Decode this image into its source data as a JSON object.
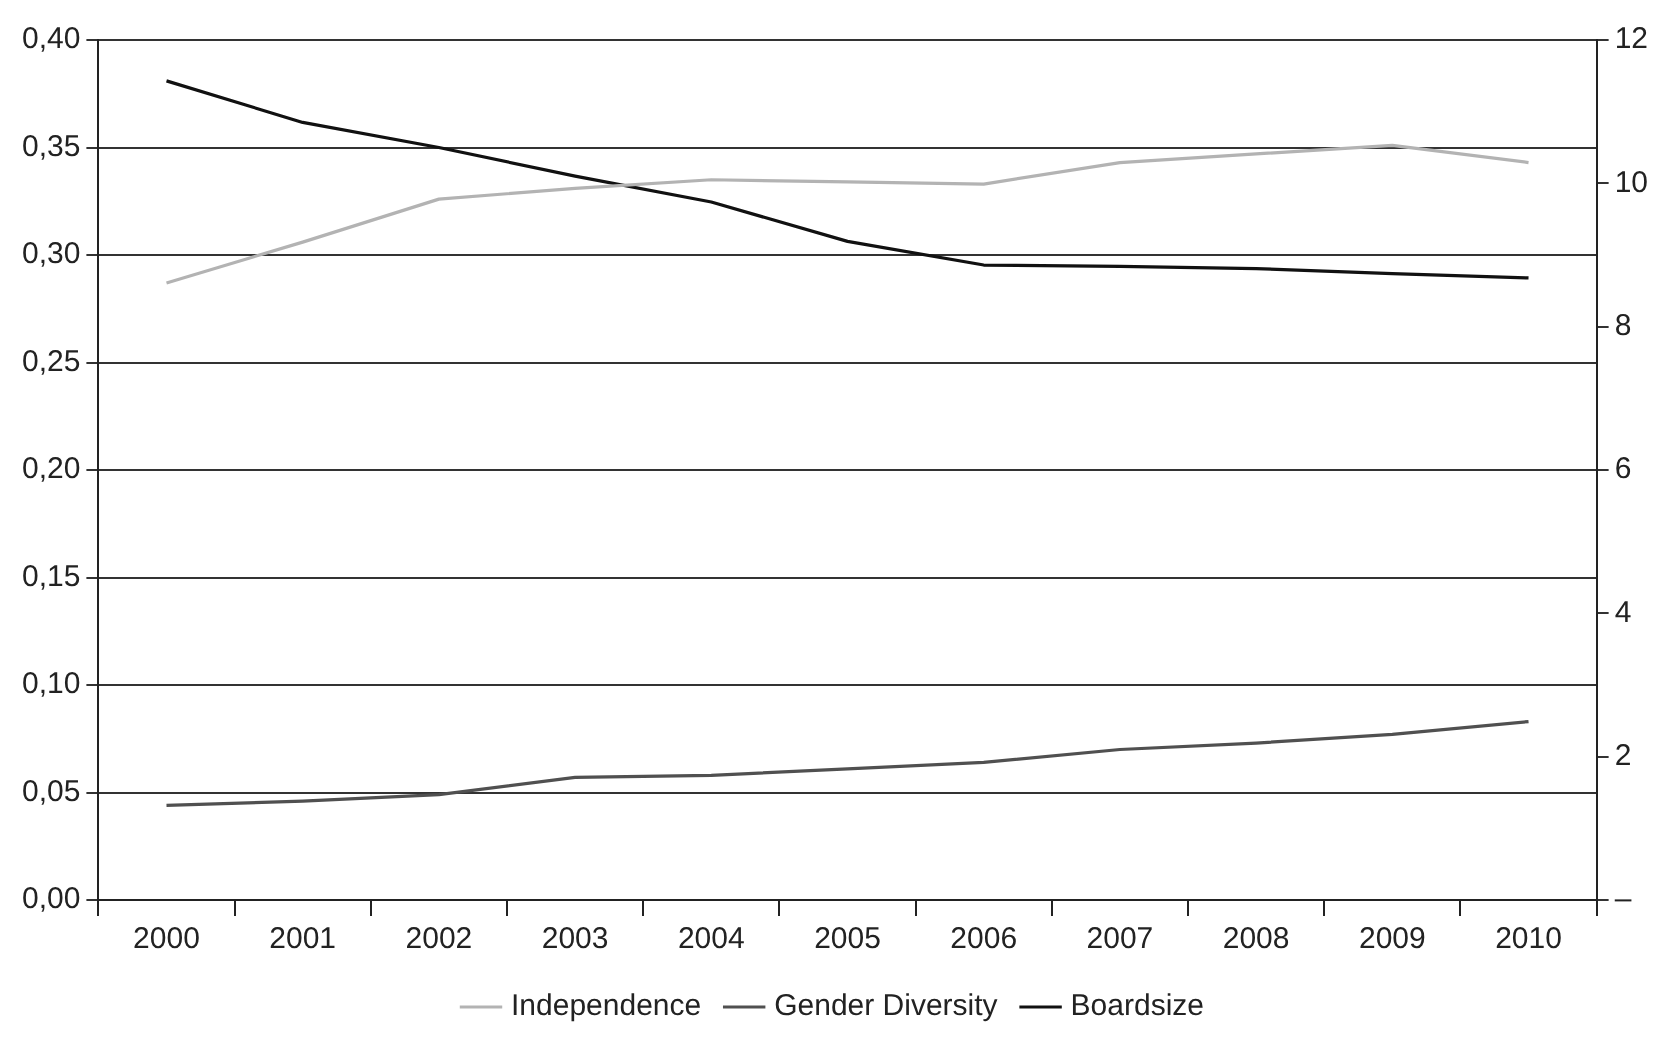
{
  "chart_data": {
    "type": "line",
    "categories": [
      "2000",
      "2001",
      "2002",
      "2003",
      "2004",
      "2005",
      "2006",
      "2007",
      "2008",
      "2009",
      "2010"
    ],
    "series": [
      {
        "name": "Independence",
        "color": "#b3b3b3",
        "values": [
          0.287,
          0.306,
          0.326,
          0.331,
          0.335,
          0.334,
          0.333,
          0.343,
          0.347,
          0.351,
          0.343
        ]
      },
      {
        "name": "Gender Diversity",
        "color": "#505050",
        "values": [
          0.044,
          0.046,
          0.049,
          0.057,
          0.058,
          0.061,
          0.064,
          0.07,
          0.073,
          0.077,
          0.083
        ]
      },
      {
        "name": "Boardsize",
        "color": "#111111",
        "axis": "y2",
        "values": [
          11.43,
          10.85,
          10.5,
          10.1,
          9.74,
          9.19,
          8.86,
          8.84,
          8.81,
          8.74,
          8.68
        ]
      }
    ],
    "ylim": [
      0,
      0.4
    ],
    "yticks": [
      {
        "value": 0,
        "label": "0,00"
      },
      {
        "value": 0.05,
        "label": "0,05"
      },
      {
        "value": 0.1,
        "label": "0,10"
      },
      {
        "value": 0.15,
        "label": "0,15"
      },
      {
        "value": 0.2,
        "label": "0,20"
      },
      {
        "value": 0.25,
        "label": "0,25"
      },
      {
        "value": 0.3,
        "label": "0,30"
      },
      {
        "value": 0.35,
        "label": "0,35"
      },
      {
        "value": 0.4,
        "label": "0,40"
      }
    ],
    "y2lim": [
      0,
      12
    ],
    "y2ticks": [
      {
        "value": 0,
        "label": "–"
      },
      2,
      4,
      6,
      8,
      10,
      12
    ],
    "grid": "y",
    "legend": "bottom",
    "marker": "none",
    "line_style": "solid"
  }
}
